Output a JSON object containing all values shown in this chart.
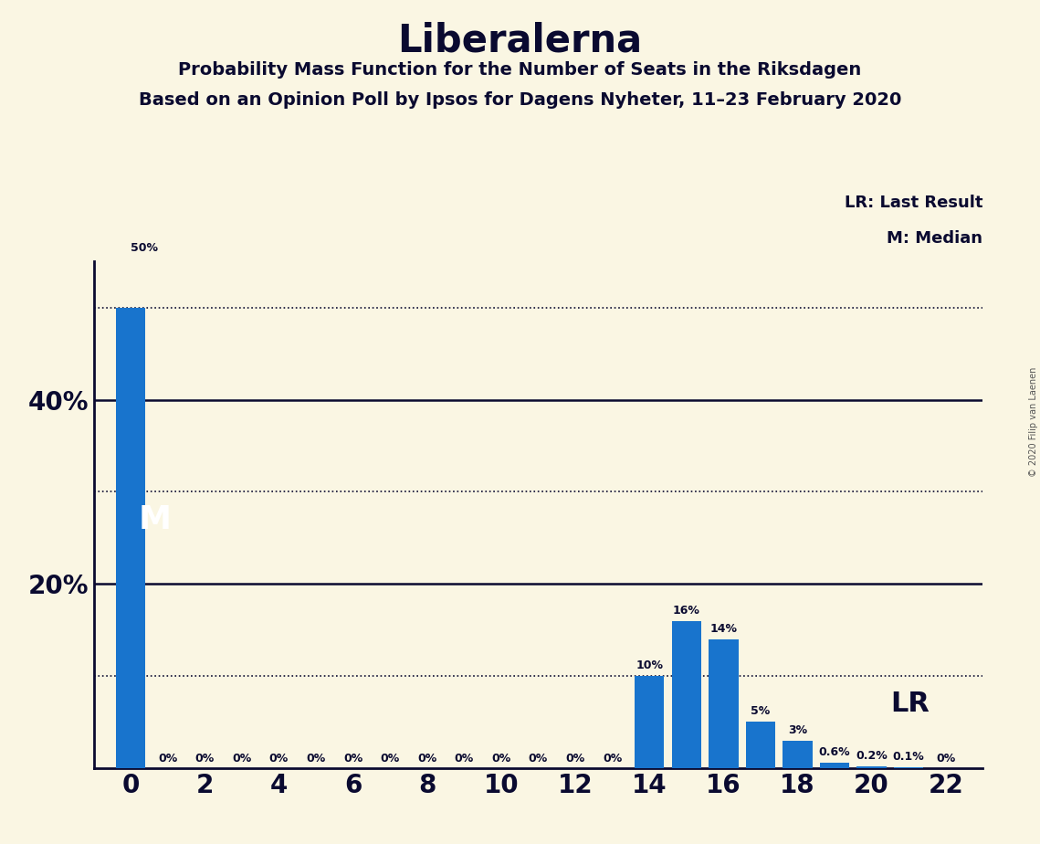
{
  "title": "Liberalerna",
  "subtitle1": "Probability Mass Function for the Number of Seats in the Riksdagen",
  "subtitle2": "Based on an Opinion Poll by Ipsos for Dagens Nyheter, 11–23 February 2020",
  "copyright": "© 2020 Filip van Laenen",
  "background_color": "#FAF6E3",
  "bar_color": "#1874CD",
  "seats": [
    0,
    1,
    2,
    3,
    4,
    5,
    6,
    7,
    8,
    9,
    10,
    11,
    12,
    13,
    14,
    15,
    16,
    17,
    18,
    19,
    20,
    21,
    22
  ],
  "probabilities": [
    50.0,
    0.0,
    0.0,
    0.0,
    0.0,
    0.0,
    0.0,
    0.0,
    0.0,
    0.0,
    0.0,
    0.0,
    0.0,
    0.0,
    10.0,
    16.0,
    14.0,
    5.0,
    3.0,
    0.6,
    0.2,
    0.1,
    0.0
  ],
  "bar_labels": [
    "50%",
    "0%",
    "0%",
    "0%",
    "0%",
    "0%",
    "0%",
    "0%",
    "0%",
    "0%",
    "0%",
    "0%",
    "0%",
    "0%",
    "10%",
    "16%",
    "14%",
    "5%",
    "3%",
    "0.6%",
    "0.2%",
    "0.1%",
    "0%"
  ],
  "median_seat": 0,
  "last_result_seat": 19,
  "ylim": [
    0,
    55
  ],
  "yticks": [
    20,
    40
  ],
  "solid_lines": [
    20,
    40
  ],
  "dotted_lines": [
    10,
    30,
    50
  ],
  "legend_lr": "LR: Last Result",
  "legend_m": "M: Median",
  "lr_label": "LR",
  "m_label": "M",
  "text_color": "#0a0a30"
}
